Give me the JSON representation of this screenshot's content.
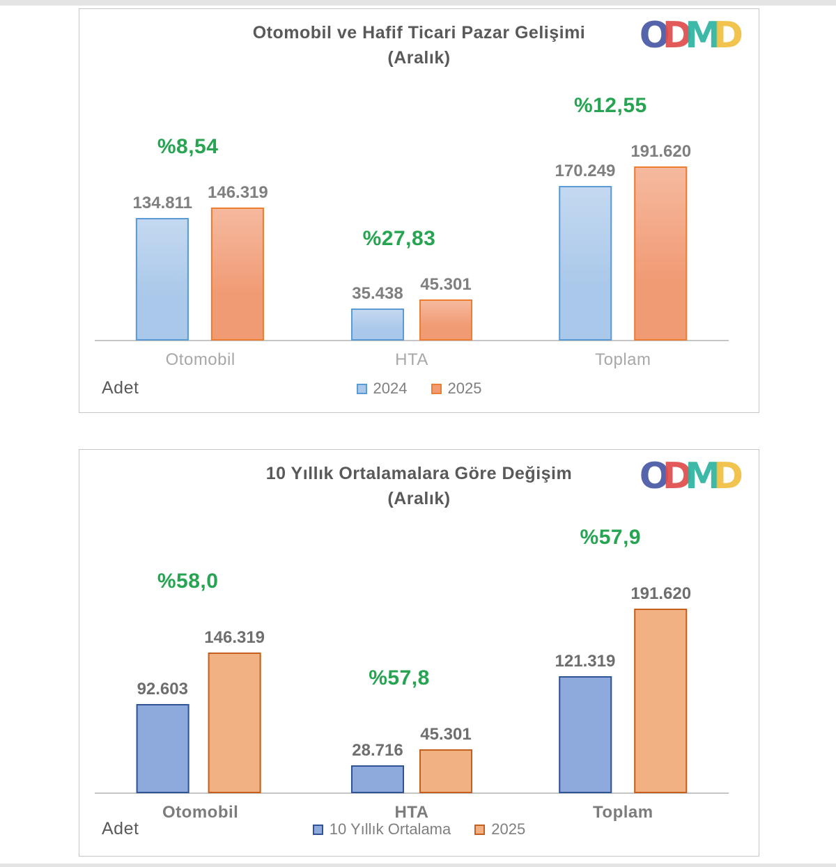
{
  "page": {
    "edge_strip_color": "#e4e4e4"
  },
  "logo": {
    "name": "ODMD",
    "letters": [
      {
        "ch": "O",
        "color": "#4857a6"
      },
      {
        "ch": "D",
        "color": "#e04b4b"
      },
      {
        "ch": "M",
        "color": "#2eb3a0"
      },
      {
        "ch": "D",
        "color": "#efbf3f"
      }
    ]
  },
  "chart_data": [
    {
      "type": "bar",
      "title": "Otomobil ve Hafif Ticari Pazar Gelişimi",
      "subtitle": "(Aralık)",
      "unit_label": "Adet",
      "categories": [
        "Otomobil",
        "HTA",
        "Toplam"
      ],
      "series": [
        {
          "name": "2024",
          "values": [
            134811,
            35438,
            170249
          ],
          "labels": [
            "134.811",
            "35.438",
            "170.249"
          ]
        },
        {
          "name": "2025",
          "values": [
            146319,
            45301,
            191620
          ],
          "labels": [
            "146.319",
            "45.301",
            "191.620"
          ]
        }
      ],
      "pct_labels": [
        "%8,54",
        "%27,83",
        "%12,55"
      ],
      "legend": [
        "2024",
        "2025"
      ],
      "ylim": [
        0,
        200000
      ],
      "grid": false,
      "legend_position": "bottom-center",
      "colors": {
        "series1_fill": "#aac8ea",
        "series1_border": "#5b9bd5",
        "series2_fill": "#f19b75",
        "series2_border": "#ed7d31",
        "pct_text": "#27a452"
      }
    },
    {
      "type": "bar",
      "title": "10 Yıllık Ortalamalara Göre Değişim",
      "subtitle": "(Aralık)",
      "unit_label": "Adet",
      "categories": [
        "Otomobil",
        "HTA",
        "Toplam"
      ],
      "series": [
        {
          "name": "10 Yıllık Ortalama",
          "values": [
            92603,
            28716,
            121319
          ],
          "labels": [
            "92.603",
            "28.716",
            "121.319"
          ]
        },
        {
          "name": "2025",
          "values": [
            146319,
            45301,
            191620
          ],
          "labels": [
            "146.319",
            "45.301",
            "191.620"
          ]
        }
      ],
      "pct_labels": [
        "%58,0",
        "%57,8",
        "%57,9"
      ],
      "legend": [
        "10 Yıllık Ortalama",
        "2025"
      ],
      "ylim": [
        0,
        200000
      ],
      "grid": false,
      "legend_position": "bottom-center",
      "colors": {
        "series1_fill": "#8ea9dc",
        "series1_border": "#2f5496",
        "series2_fill": "#f2b183",
        "series2_border": "#c55f1d",
        "pct_text": "#27a452"
      }
    }
  ]
}
